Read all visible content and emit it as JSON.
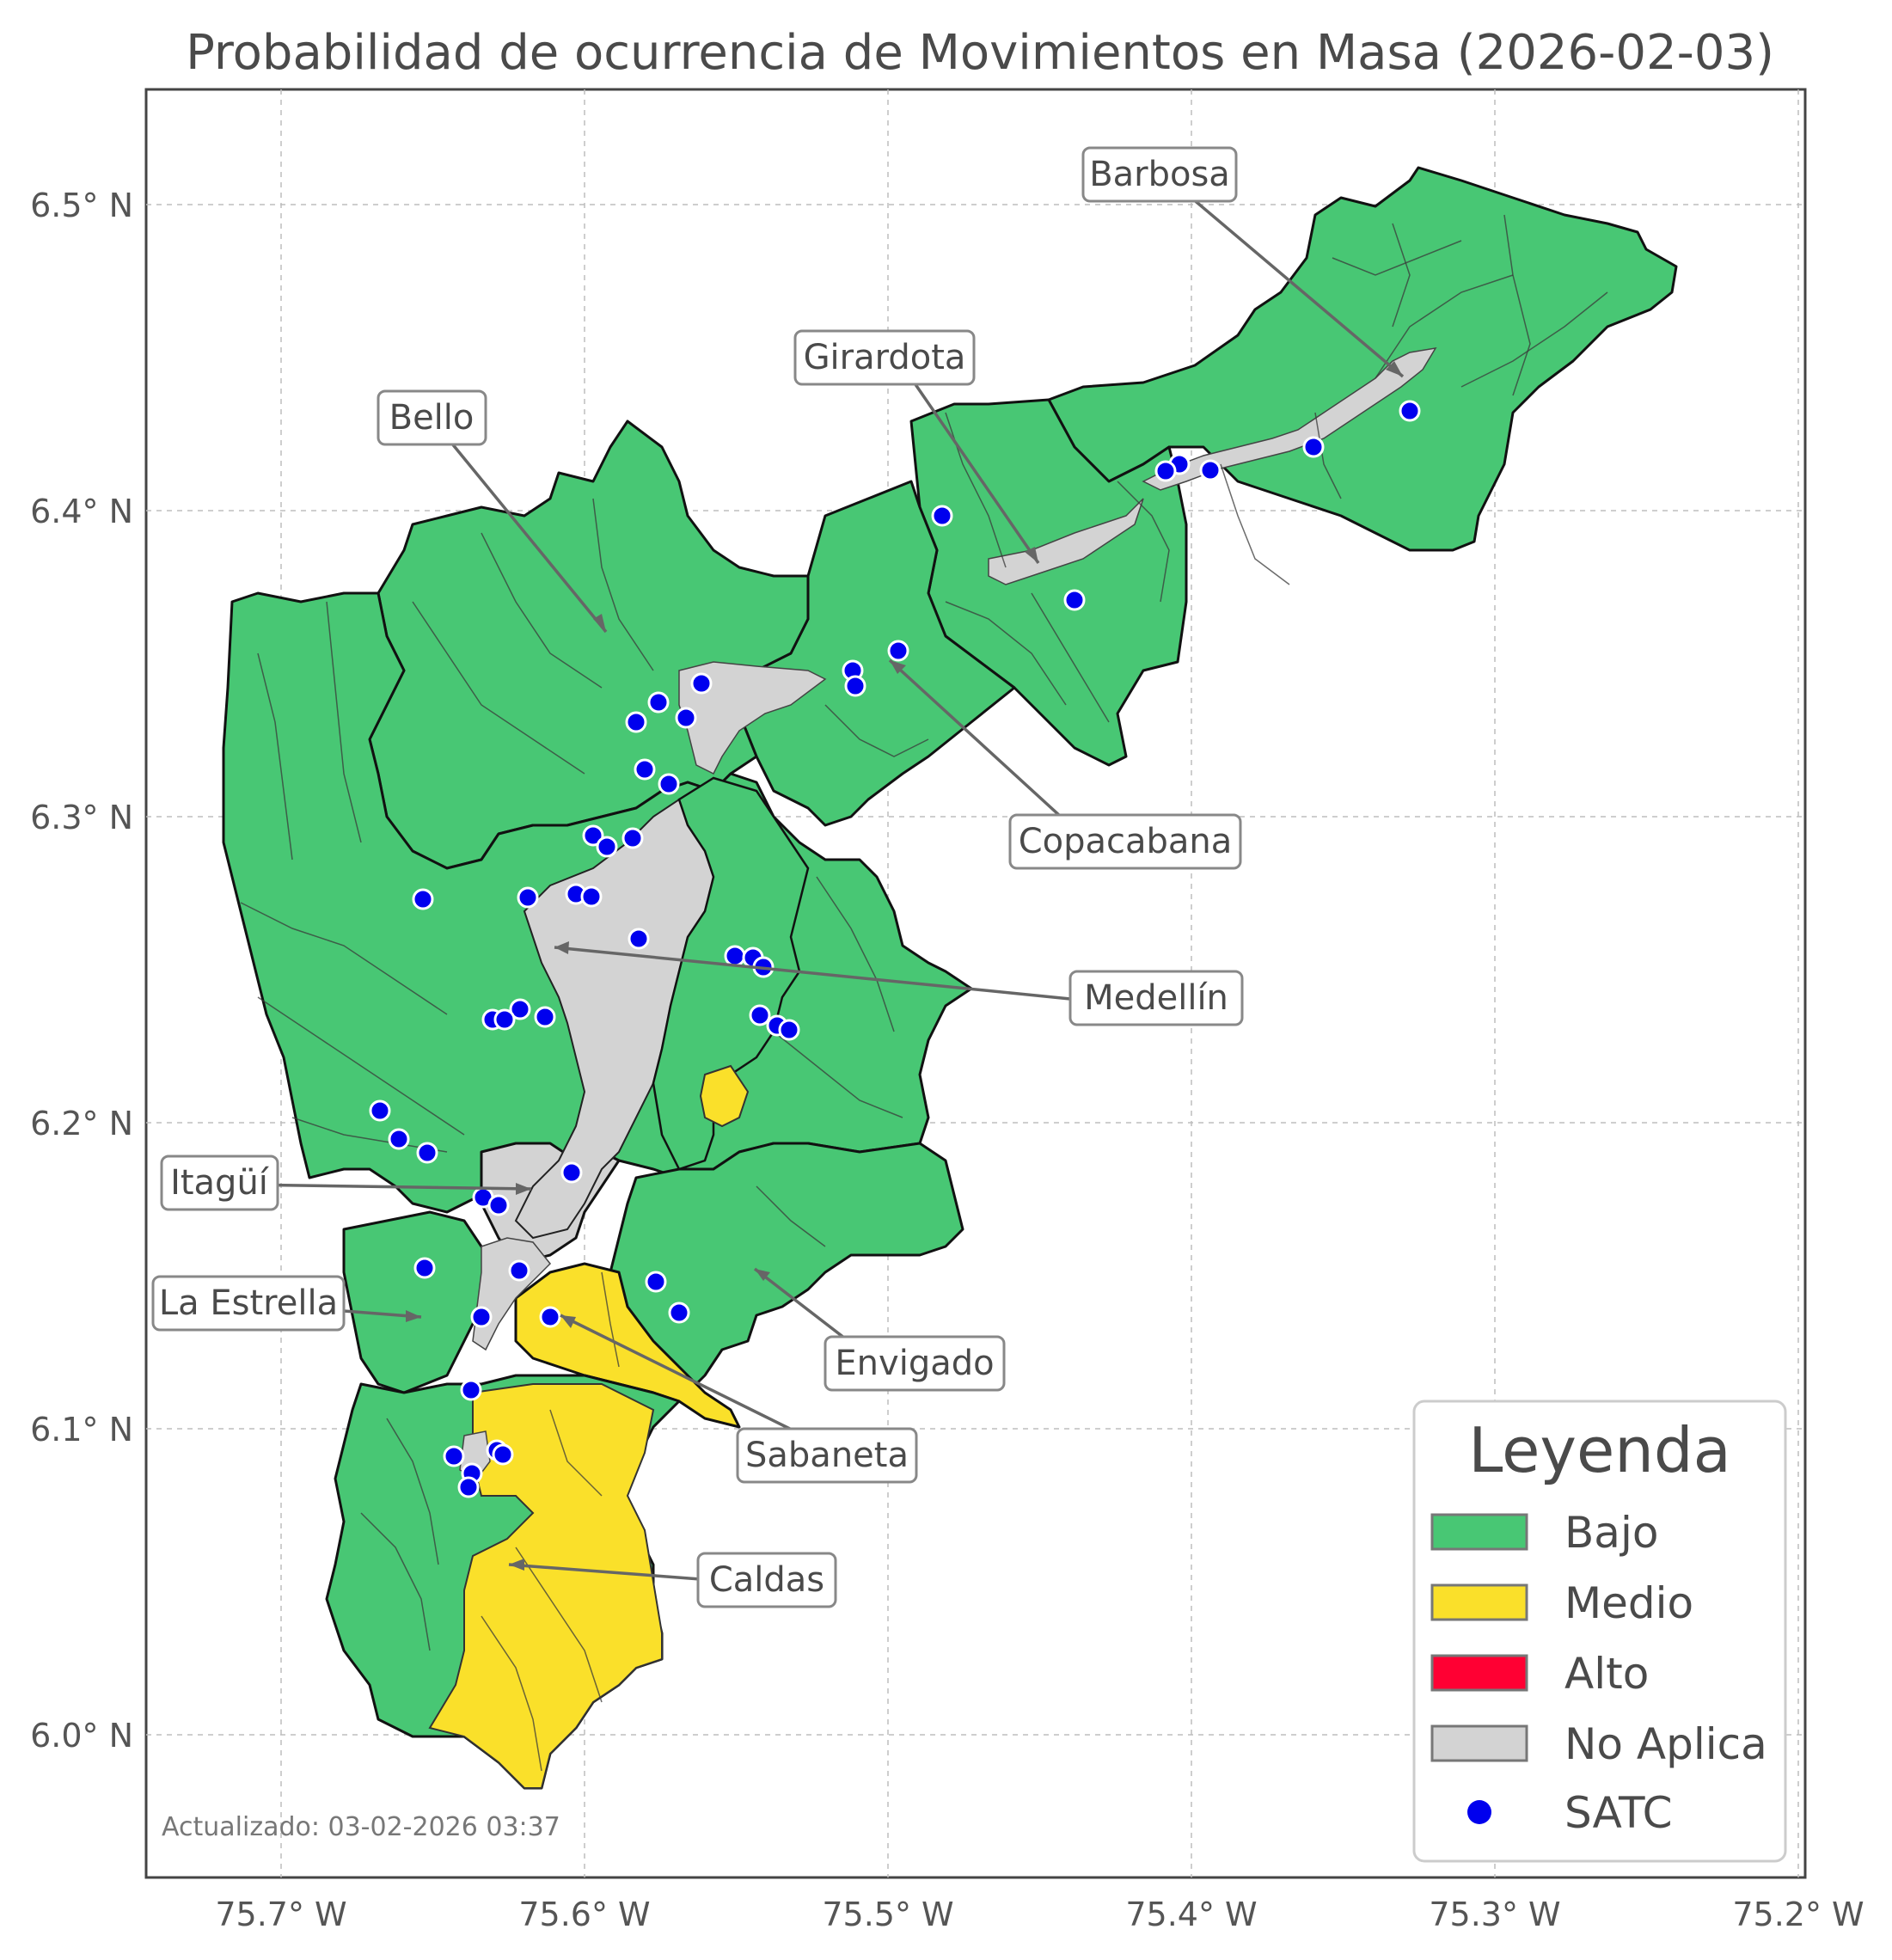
{
  "title": "Probabilidad de ocurrencia de Movimientos en Masa (2026-02-03)",
  "lon_ticks": [
    "75.7° W",
    "75.6° W",
    "75.5° W",
    "75.4° W",
    "75.3° W",
    "75.2° W"
  ],
  "lat_ticks": [
    "6.5° N",
    "6.4° N",
    "6.3° N",
    "6.2° N",
    "6.1° N",
    "6.0° N"
  ],
  "municipalities": [
    "Barbosa",
    "Girardota",
    "Bello",
    "Copacabana",
    "Medellín",
    "Itagüí",
    "La Estrella",
    "Envigado",
    "Sabaneta",
    "Caldas"
  ],
  "legend": {
    "title": "Leyenda",
    "items": [
      {
        "label": "Bajo",
        "color": "#48c774"
      },
      {
        "label": "Medio",
        "color": "#fae02a"
      },
      {
        "label": "Alto",
        "color": "#ff0033"
      },
      {
        "label": "No Aplica",
        "color": "#d3d3d3"
      },
      {
        "label": "SATC",
        "color": "#0000ee"
      }
    ]
  },
  "updated": "Actualizado: 03-02-2026 03:37",
  "colors": {
    "bajo": "#48c774",
    "medio": "#fae02a",
    "alto": "#ff0033",
    "no_aplica": "#d3d3d3",
    "satc": "#0000ee"
  }
}
